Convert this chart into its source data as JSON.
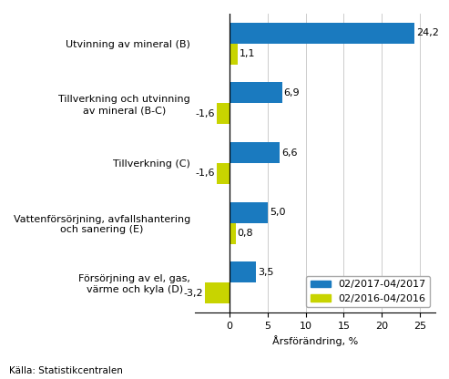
{
  "categories": [
    "Utvinning av mineral (B)",
    "Tillverkning och utvinning\nav mineral (B-C)",
    "Tillverkning (C)",
    "Vattenförsörjning, avfallshantering\noch sanering (E)",
    "Försörjning av el, gas,\nvärme och kyla (D)"
  ],
  "series1_label": "02/2017-04/2017",
  "series2_label": "02/2016-04/2016",
  "series1_color": "#1a7abf",
  "series2_color": "#c8d400",
  "series1_values": [
    24.2,
    6.9,
    6.6,
    5.0,
    3.5
  ],
  "series2_values": [
    1.1,
    -1.6,
    -1.6,
    0.8,
    -3.2
  ],
  "xlabel": "Årsförändring, %",
  "source": "Källa: Statistikcentralen",
  "xlim": [
    -4.5,
    27
  ],
  "xticks": [
    0,
    5,
    10,
    15,
    20,
    25
  ],
  "xtick_labels": [
    "0",
    "5",
    "10",
    "15",
    "20",
    "25"
  ],
  "bar_height": 0.35,
  "label_fontsize": 8,
  "tick_fontsize": 8,
  "value_fontsize": 8
}
